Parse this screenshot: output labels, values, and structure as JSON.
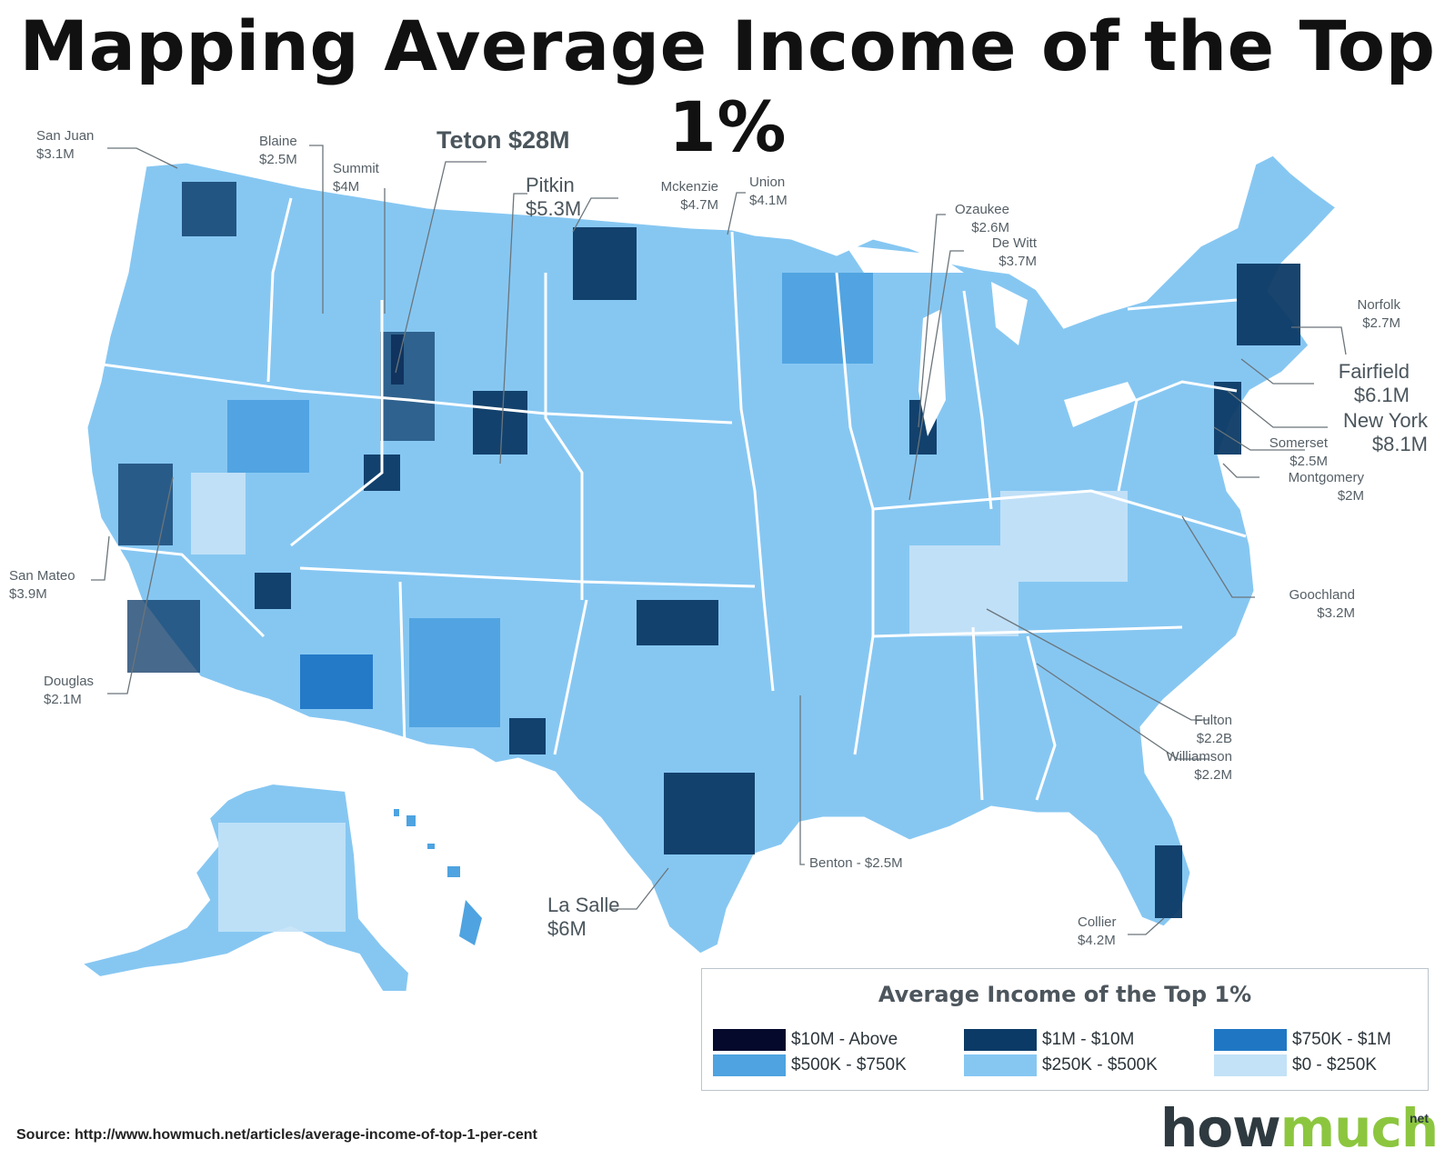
{
  "title": "Mapping Average Income of the Top 1%",
  "legend": {
    "title": "Average Income of the Top 1%",
    "items": [
      {
        "label": "$10M - Above",
        "color": "#050a2c"
      },
      {
        "label": "$1M - $10M",
        "color": "#0c3a66"
      },
      {
        "label": "$750K - $1M",
        "color": "#1f77c4"
      },
      {
        "label": "$500K - $750K",
        "color": "#4ea3e0"
      },
      {
        "label": "$250K - $500K",
        "color": "#86c7f2"
      },
      {
        "label": "$0 - $250K",
        "color": "#c3e2f7"
      }
    ]
  },
  "callouts": {
    "san_juan": {
      "name": "San Juan",
      "value": "$3.1M"
    },
    "blaine": {
      "name": "Blaine",
      "value": "$2.5M"
    },
    "summit": {
      "name": "Summit",
      "value": "$4M"
    },
    "teton": {
      "text": "Teton $28M"
    },
    "pitkin": {
      "name": "Pitkin",
      "value": "$5.3M"
    },
    "mckenzie": {
      "name": "Mckenzie",
      "value": "$4.7M"
    },
    "union": {
      "name": "Union",
      "value": "$4.1M"
    },
    "ozaukee": {
      "name": "Ozaukee",
      "value": "$2.6M"
    },
    "de_witt": {
      "name": "De Witt",
      "value": "$3.7M"
    },
    "norfolk": {
      "name": "Norfolk",
      "value": "$2.7M"
    },
    "fairfield": {
      "name": "Fairfield",
      "value": "$6.1M"
    },
    "new_york": {
      "name": "New York",
      "value": "$8.1M"
    },
    "somerset": {
      "name": "Somerset",
      "value": "$2.5M"
    },
    "montgomery": {
      "name": "Montgomery",
      "value": "$2M"
    },
    "goochland": {
      "name": "Goochland",
      "value": "$3.2M"
    },
    "san_mateo": {
      "name": "San Mateo",
      "value": "$3.9M"
    },
    "douglas": {
      "name": "Douglas",
      "value": "$2.1M"
    },
    "fulton": {
      "name": "Fulton",
      "value": "$2.2B"
    },
    "williamson": {
      "name": "Williamson",
      "value": "$2.2M"
    },
    "benton": {
      "text": "Benton - $2.5M"
    },
    "la_salle": {
      "name": "La Salle",
      "value": "$6M"
    },
    "collier": {
      "name": "Collier",
      "value": "$4.2M"
    }
  },
  "source": "Source: http://www.howmuch.net/articles/average-income-of-top-1-per-cent",
  "brand": {
    "part1": "how",
    "part2": "much",
    "suffix": "net"
  },
  "colors": {
    "land_base": "#86c7f2",
    "border": "#ffffff",
    "leader": "#6b757b"
  }
}
